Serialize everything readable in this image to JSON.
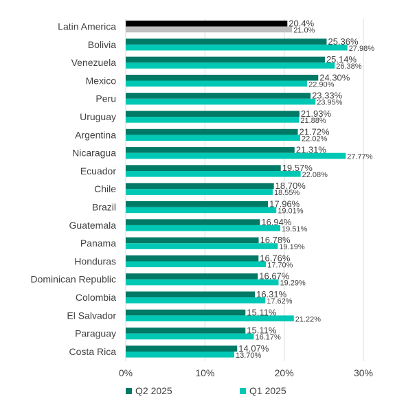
{
  "chart_data": {
    "type": "bar",
    "orientation": "horizontal",
    "categories": [
      "Latin America",
      "Bolivia",
      "Venezuela",
      "Mexico",
      "Peru",
      "Uruguay",
      "Argentina",
      "Nicaragua",
      "Ecuador",
      "Chile",
      "Brazil",
      "Guatemala",
      "Panama",
      "Honduras",
      "Dominican Republic",
      "Colombia",
      "El Salvador",
      "Paraguay",
      "Costa Rica"
    ],
    "series": [
      {
        "name": "Q2 2025",
        "color": "#007a66",
        "highlight_color": "#000000",
        "values": [
          20.4,
          25.36,
          25.14,
          24.3,
          23.33,
          21.93,
          21.72,
          21.31,
          19.57,
          18.7,
          17.96,
          16.94,
          16.78,
          16.76,
          16.67,
          16.31,
          15.11,
          15.11,
          14.07
        ],
        "labels": [
          "20.4%",
          "25.36%",
          "25.14%",
          "24.30%",
          "23.33%",
          "21.93%",
          "21.72%",
          "21.31%",
          "19.57%",
          "18.70%",
          "17.96%",
          "16.94%",
          "16.78%",
          "16.76%",
          "16.67%",
          "16.31%",
          "15.11%",
          "15.11%",
          "14.07%"
        ]
      },
      {
        "name": "Q1 2025",
        "color": "#00c8b4",
        "highlight_color": "#bfbfbf",
        "values": [
          21.0,
          27.98,
          26.38,
          22.9,
          23.95,
          21.88,
          22.02,
          27.77,
          22.08,
          18.55,
          19.01,
          19.51,
          19.19,
          17.7,
          19.29,
          17.62,
          21.22,
          16.17,
          13.7
        ],
        "labels": [
          "21.0%",
          "27.98%",
          "26.38%",
          "22.90%",
          "23.95%",
          "21.88%",
          "22.02%",
          "27.77%",
          "22.08%",
          "18.55%",
          "19.01%",
          "19.51%",
          "19.19%",
          "17.70%",
          "19.29%",
          "17.62%",
          "21.22%",
          "16.17%",
          "13.70%"
        ]
      }
    ],
    "xlim": [
      0,
      30
    ],
    "xticks": [
      "0%",
      "10%",
      "20%",
      "30%"
    ],
    "xtick_values": [
      0,
      10,
      20,
      30
    ],
    "grid": "vertical",
    "grid_color": "#d9d9d9",
    "legend": {
      "placement": "bottom"
    }
  }
}
